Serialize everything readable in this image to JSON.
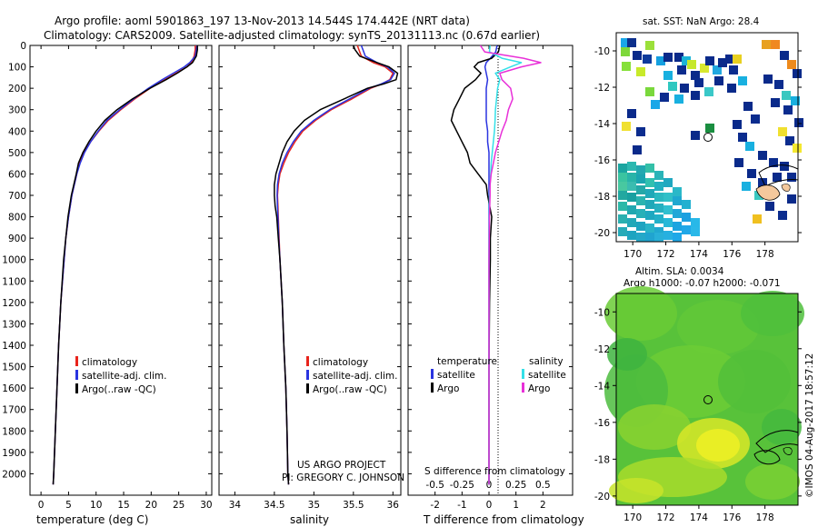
{
  "header": {
    "line1": "Argo profile: aoml 5901863_197 13-Nov-2013 14.544S 174.442E (NRT data)",
    "line2": "Climatology: CARS2009. Satellite-adjusted climatology: synTS_20131113.nc (0.67d earlier)"
  },
  "colors": {
    "climatology": "#e8241c",
    "satellite": "#2a34e0",
    "argo": "#000000",
    "sat_s": "#33e0e8",
    "argo_s": "#e830d8"
  },
  "legend1": {
    "clim": "climatology",
    "sat": "satellite-adj. clim.",
    "argo": "Argo(..raw -QC)"
  },
  "legend3": {
    "temp_head": "temperature",
    "sal_head": "salinity",
    "sat": "satellite",
    "argo": "Argo"
  },
  "project": {
    "line1": "US ARGO PROJECT",
    "line2": "PI: GREGORY C. JOHNSON"
  },
  "sst_title": "sat. SST: NaN Argo: 28.4",
  "sla_title1": "Altim. SLA: 0.0034",
  "sla_title2": "Argo h1000: -0.07 h2000: -0.071",
  "watermark": "©IMOS 04-Aug-2017 18:57:12",
  "chart_data": [
    {
      "type": "line",
      "name": "temperature",
      "xlabel": "temperature (deg C)",
      "ylabel": "",
      "xlim": [
        -2,
        31
      ],
      "ylim": [
        2100,
        0
      ],
      "xticks": [
        0,
        5,
        10,
        15,
        20,
        25,
        30
      ],
      "yticks": [
        0,
        100,
        200,
        300,
        400,
        500,
        600,
        700,
        800,
        900,
        1000,
        1100,
        1200,
        1300,
        1400,
        1500,
        1600,
        1700,
        1800,
        1900,
        2000
      ],
      "depth": [
        0,
        20,
        50,
        80,
        100,
        130,
        160,
        200,
        250,
        300,
        350,
        400,
        450,
        500,
        550,
        600,
        700,
        800,
        900,
        1000,
        1200,
        1400,
        1600,
        1800,
        2000,
        2050
      ],
      "series": [
        {
          "name": "climatology",
          "values": [
            28.0,
            28.0,
            27.8,
            27.3,
            26.5,
            24.5,
            22.5,
            19.8,
            17.0,
            14.5,
            12.2,
            10.5,
            9.0,
            7.8,
            7.0,
            6.5,
            5.6,
            5.0,
            4.5,
            4.2,
            3.6,
            3.2,
            2.9,
            2.6,
            2.3,
            2.2
          ]
        },
        {
          "name": "satellite-adj. clim.",
          "values": [
            28.3,
            28.2,
            28.0,
            27.0,
            26.0,
            24.0,
            22.0,
            19.5,
            16.8,
            14.3,
            12.0,
            10.4,
            9.0,
            7.9,
            7.1,
            6.5,
            5.6,
            5.0,
            4.5,
            4.2,
            3.6,
            3.2,
            2.9,
            2.6,
            2.3,
            2.2
          ]
        },
        {
          "name": "Argo(..raw -QC)",
          "values": [
            28.4,
            28.4,
            28.2,
            27.5,
            26.5,
            24.7,
            22.7,
            19.8,
            16.6,
            13.8,
            11.6,
            10.0,
            8.7,
            7.6,
            6.8,
            6.4,
            5.5,
            4.9,
            4.5,
            4.1,
            3.6,
            3.2,
            2.9,
            2.6,
            2.3,
            2.2
          ]
        }
      ]
    },
    {
      "type": "line",
      "name": "salinity",
      "xlabel": "salinity",
      "ylabel": "",
      "xlim": [
        33.8,
        36.1
      ],
      "ylim": [
        2100,
        0
      ],
      "xticks": [
        34,
        34.5,
        35,
        35.5,
        36
      ],
      "depth": [
        0,
        20,
        50,
        80,
        100,
        130,
        160,
        180,
        200,
        250,
        300,
        350,
        400,
        450,
        500,
        550,
        600,
        650,
        700,
        750,
        800,
        900,
        1000,
        1200,
        1400,
        1600,
        1800,
        2000,
        2050
      ],
      "series": [
        {
          "name": "climatology",
          "values": [
            35.55,
            35.57,
            35.6,
            35.75,
            35.9,
            36.0,
            35.96,
            35.86,
            35.72,
            35.48,
            35.22,
            35.02,
            34.86,
            34.76,
            34.68,
            34.62,
            34.57,
            34.55,
            34.54,
            34.545,
            34.55,
            34.56,
            34.57,
            34.6,
            34.62,
            34.645,
            34.66,
            34.67,
            34.68
          ]
        },
        {
          "name": "satellite-adj. clim.",
          "values": [
            35.6,
            35.62,
            35.65,
            35.8,
            35.93,
            36.02,
            35.97,
            35.85,
            35.7,
            35.45,
            35.2,
            35.0,
            34.84,
            34.74,
            34.66,
            34.6,
            34.56,
            34.54,
            34.535,
            34.54,
            34.545,
            34.555,
            34.57,
            34.6,
            34.62,
            34.645,
            34.66,
            34.67,
            34.68
          ]
        },
        {
          "name": "Argo(..raw -QC)",
          "values": [
            35.5,
            35.52,
            35.58,
            35.8,
            35.95,
            36.06,
            36.04,
            35.88,
            35.68,
            35.38,
            35.08,
            34.88,
            34.75,
            34.66,
            34.6,
            34.56,
            34.52,
            34.5,
            34.5,
            34.51,
            34.53,
            34.55,
            34.57,
            34.6,
            34.62,
            34.645,
            34.66,
            34.67,
            34.68
          ]
        }
      ]
    },
    {
      "type": "line",
      "name": "difference from climatology",
      "xlabel": "T difference from climatology",
      "x2label": "S difference from climatology",
      "xlim": [
        -3,
        3.1
      ],
      "ylim": [
        2100,
        0
      ],
      "xticks": [
        -2,
        -1,
        0,
        1,
        2
      ],
      "x2ticks": [
        -0.5,
        -0.25,
        0,
        0.25,
        0.5
      ],
      "x2tick_labels": [
        "-0.5",
        "-0.25",
        "0",
        "0.25",
        "0.5"
      ],
      "depth": [
        0,
        30,
        60,
        80,
        100,
        130,
        160,
        200,
        250,
        300,
        350,
        400,
        450,
        500,
        550,
        600,
        650,
        700,
        800,
        900,
        1000,
        1200,
        1500,
        1800,
        2000,
        2050
      ],
      "series": [
        {
          "name": "temperature satellite",
          "values": [
            0.3,
            0.25,
            0.05,
            -0.1,
            -0.15,
            -0.1,
            -0.05,
            -0.1,
            -0.1,
            -0.1,
            -0.1,
            -0.05,
            -0.05,
            0,
            0,
            0,
            0,
            0,
            0,
            0,
            0,
            0,
            0,
            0,
            0,
            0
          ]
        },
        {
          "name": "temperature Argo",
          "values": [
            0.4,
            0.35,
            0.1,
            -0.4,
            -0.55,
            -0.3,
            -0.5,
            -0.9,
            -1.1,
            -1.3,
            -1.4,
            -1.2,
            -1.0,
            -0.8,
            -0.7,
            -0.4,
            -0.1,
            -0.05,
            0.1,
            0.05,
            0.05,
            0.02,
            0.0,
            0.0,
            0.0,
            0.0
          ]
        },
        {
          "name": "salinity satellite",
          "values": [
            0.05,
            0.02,
            0.6,
            1.5,
            1.0,
            0.3,
            0.5,
            0.4,
            0.35,
            0.3,
            0.28,
            0.25,
            0.2,
            0.15,
            0.1,
            0.08,
            0.05,
            0.02,
            0.01,
            0.0,
            0.0,
            0.0,
            0.0,
            0.0,
            0.0,
            0.0
          ]
        },
        {
          "name": "salinity Argo",
          "values": [
            -0.4,
            -0.2,
            1.6,
            2.4,
            1.5,
            0.5,
            0.6,
            1.0,
            1.1,
            0.9,
            0.8,
            0.6,
            0.45,
            0.3,
            0.2,
            0.1,
            0.05,
            0.05,
            0.02,
            0.01,
            0.0,
            0.0,
            0.0,
            0.0,
            0.0,
            0.0
          ]
        }
      ]
    },
    {
      "type": "heatmap",
      "name": "satellite SST map",
      "title": "sat. SST: NaN Argo: 28.4",
      "xlim": [
        169,
        180
      ],
      "ylim": [
        -20.5,
        -9
      ],
      "xticks": [
        170,
        172,
        174,
        176,
        178
      ],
      "yticks": [
        -10,
        -12,
        -14,
        -16,
        -18,
        -20
      ],
      "marker": {
        "lon": 174.442,
        "lat": -14.544
      }
    },
    {
      "type": "heatmap",
      "name": "altimetry SLA map",
      "title": "Altim. SLA: 0.0034",
      "xlim": [
        169,
        180
      ],
      "ylim": [
        -20.5,
        -9
      ],
      "xticks": [
        170,
        172,
        174,
        176,
        178
      ],
      "yticks": [
        -10,
        -12,
        -14,
        -16,
        -18,
        -20
      ],
      "marker": {
        "lon": 174.442,
        "lat": -14.544
      }
    }
  ]
}
